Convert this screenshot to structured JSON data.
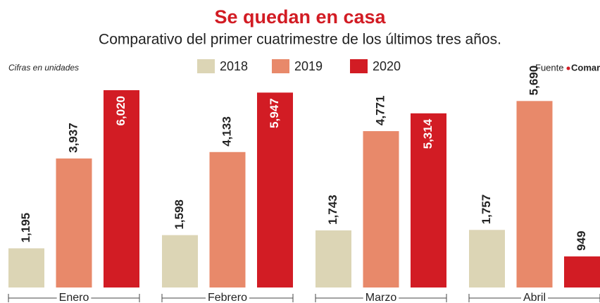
{
  "chart_data": {
    "type": "bar",
    "title": "Se quedan en casa",
    "subtitle": "Comparativo del primer cuatrimestre de los últimos tres años.",
    "note": "Cifras en unidades",
    "source": {
      "label": "Fuente",
      "name": "Comar"
    },
    "categories": [
      "Enero",
      "Febrero",
      "Marzo",
      "Abril"
    ],
    "series": [
      {
        "name": "2018",
        "color": "#dcd5b5",
        "values": [
          1195,
          1598,
          1743,
          1757
        ],
        "value_labels": [
          "1,195",
          "1,598",
          "1,743",
          "1,757"
        ]
      },
      {
        "name": "2019",
        "color": "#e8896a",
        "values": [
          3937,
          4133,
          4771,
          5690
        ],
        "value_labels": [
          "3,937",
          "4,133",
          "4,771",
          "5,690"
        ]
      },
      {
        "name": "2020",
        "color": "#d21c24",
        "values": [
          6020,
          5947,
          5314,
          949
        ],
        "value_labels": [
          "6,020",
          "5,947",
          "5,314",
          "949"
        ]
      }
    ]
  }
}
